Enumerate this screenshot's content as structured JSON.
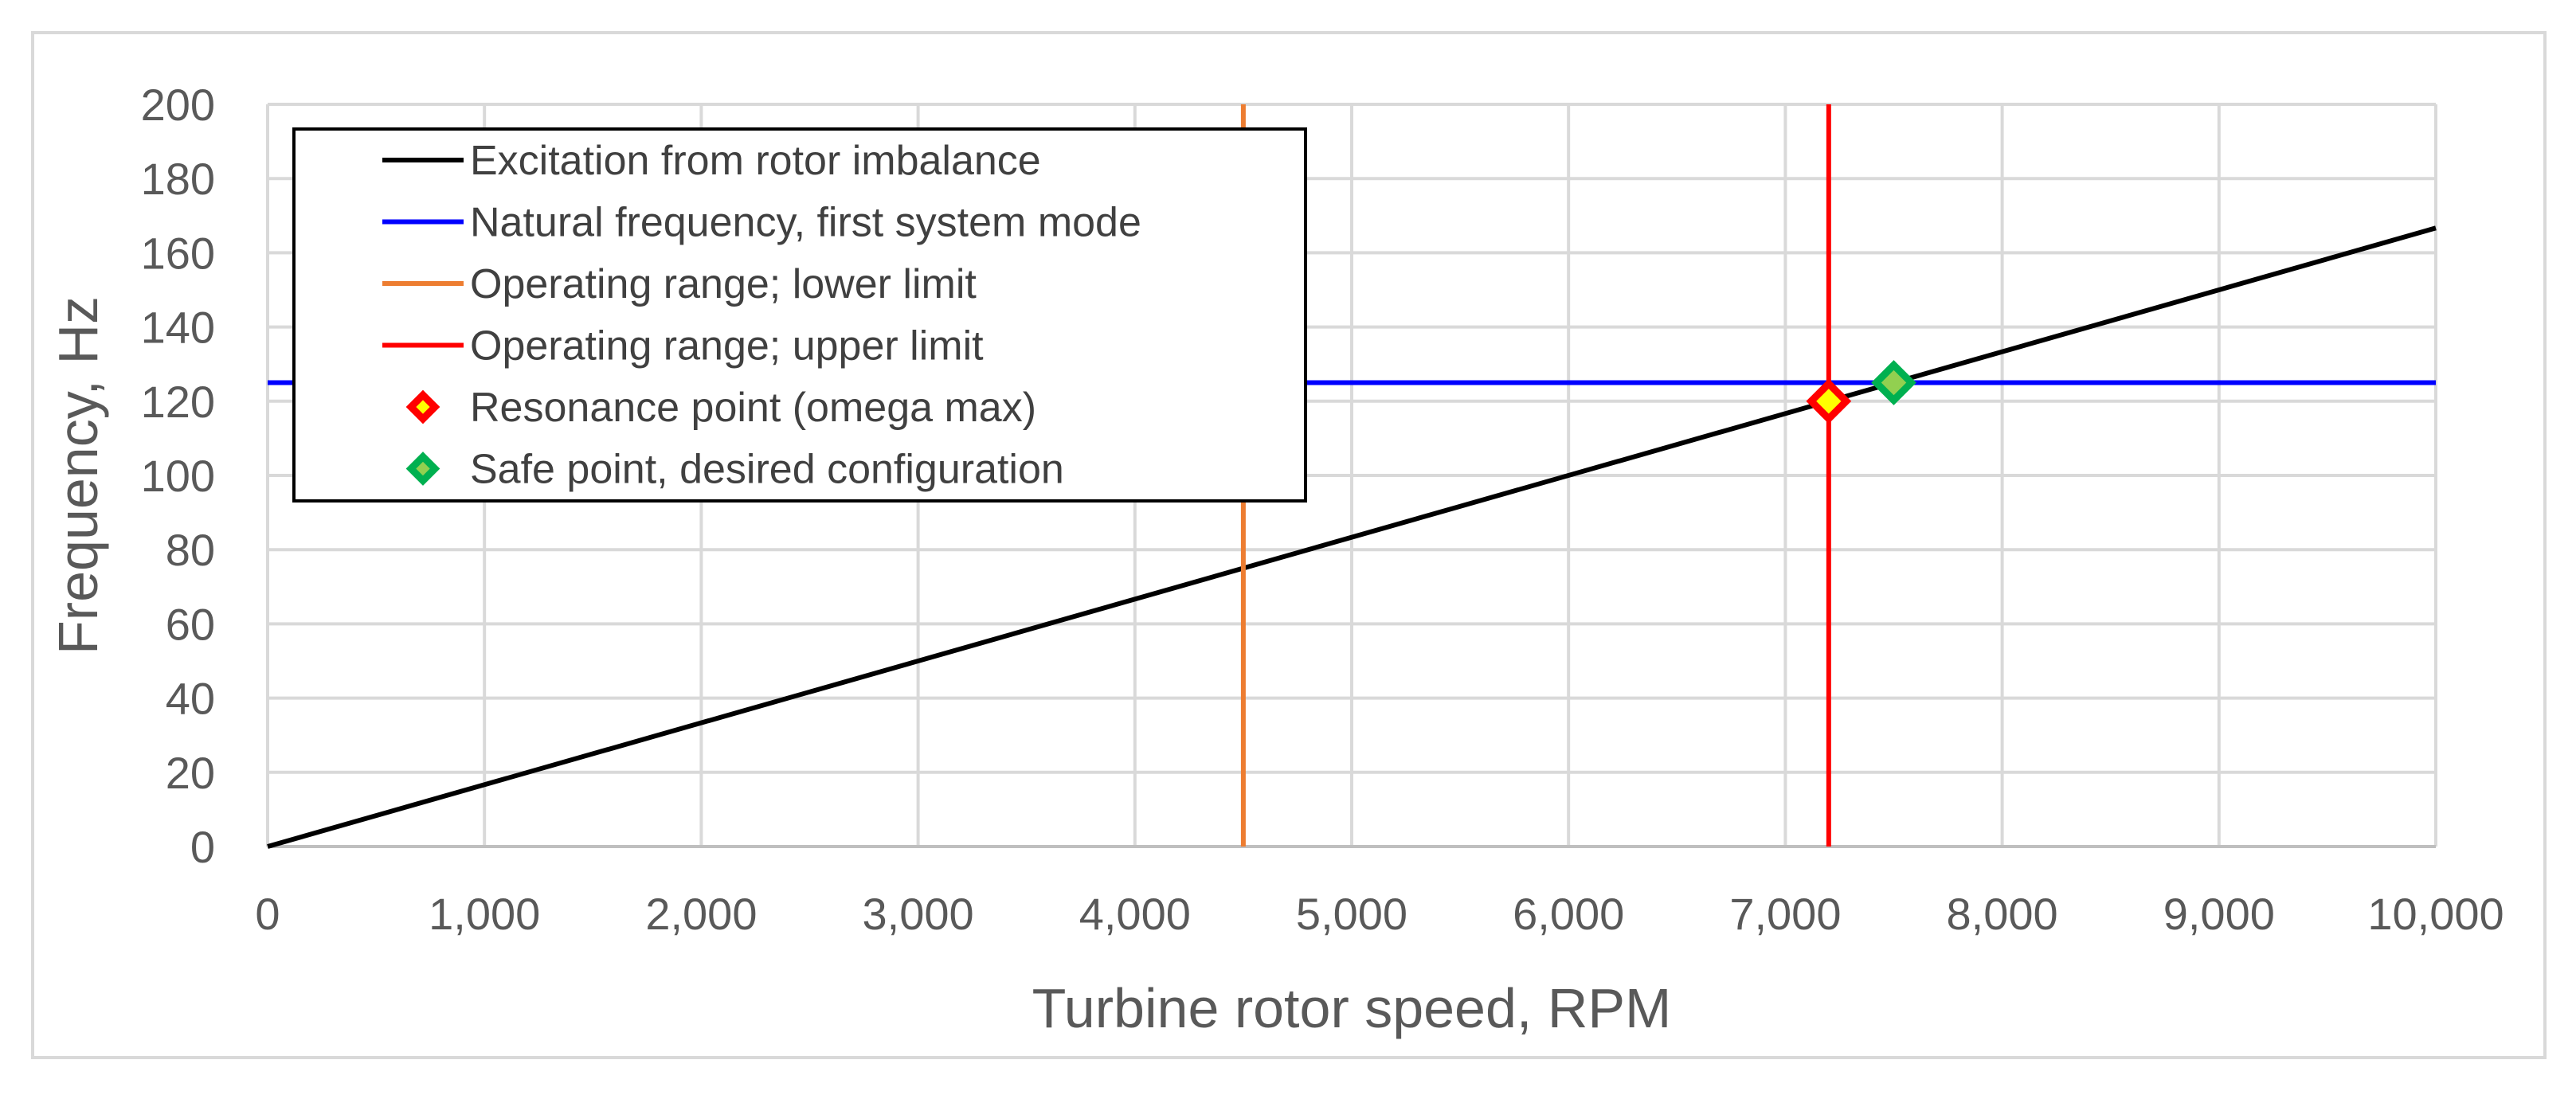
{
  "chart_data": {
    "type": "line",
    "title": "",
    "xlabel": "Turbine rotor speed, RPM",
    "ylabel": "Frequency, Hz",
    "xlim": [
      0,
      10000
    ],
    "ylim": [
      0,
      200
    ],
    "grid": true,
    "x_ticks": [
      0,
      1000,
      2000,
      3000,
      4000,
      5000,
      6000,
      7000,
      8000,
      9000,
      10000
    ],
    "x_tick_labels": [
      "0",
      "1,000",
      "2,000",
      "3,000",
      "4,000",
      "5,000",
      "6,000",
      "7,000",
      "8,000",
      "9,000",
      "10,000"
    ],
    "y_ticks": [
      0,
      20,
      40,
      60,
      80,
      100,
      120,
      140,
      160,
      180,
      200
    ],
    "y_tick_labels": [
      "0",
      "20",
      "40",
      "60",
      "80",
      "100",
      "120",
      "140",
      "160",
      "180",
      "200"
    ],
    "legend_position": "top-left",
    "series": [
      {
        "name": "Excitation from rotor imbalance",
        "kind": "line",
        "color": "#000000",
        "x": [
          0,
          10000
        ],
        "y": [
          0,
          166.67
        ]
      },
      {
        "name": "Natural frequency, first system mode",
        "kind": "line",
        "color": "#0000ff",
        "x": [
          0,
          10000
        ],
        "y": [
          125,
          125
        ]
      },
      {
        "name": "Operating range; lower limit",
        "kind": "line",
        "color": "#ed7d31",
        "x": [
          4500,
          4500
        ],
        "y": [
          0,
          200
        ]
      },
      {
        "name": "Operating range; upper limit",
        "kind": "line",
        "color": "#ff0000",
        "x": [
          7200,
          7200
        ],
        "y": [
          0,
          200
        ]
      },
      {
        "name": "Resonance point (omega max)",
        "kind": "marker",
        "edge_color": "#ff0000",
        "fill_color": "#ffff00",
        "x": [
          7200
        ],
        "y": [
          120
        ]
      },
      {
        "name": "Safe point, desired configuration",
        "kind": "marker",
        "edge_color": "#00b050",
        "fill_color": "#92d050",
        "x": [
          7500
        ],
        "y": [
          125
        ]
      }
    ]
  }
}
